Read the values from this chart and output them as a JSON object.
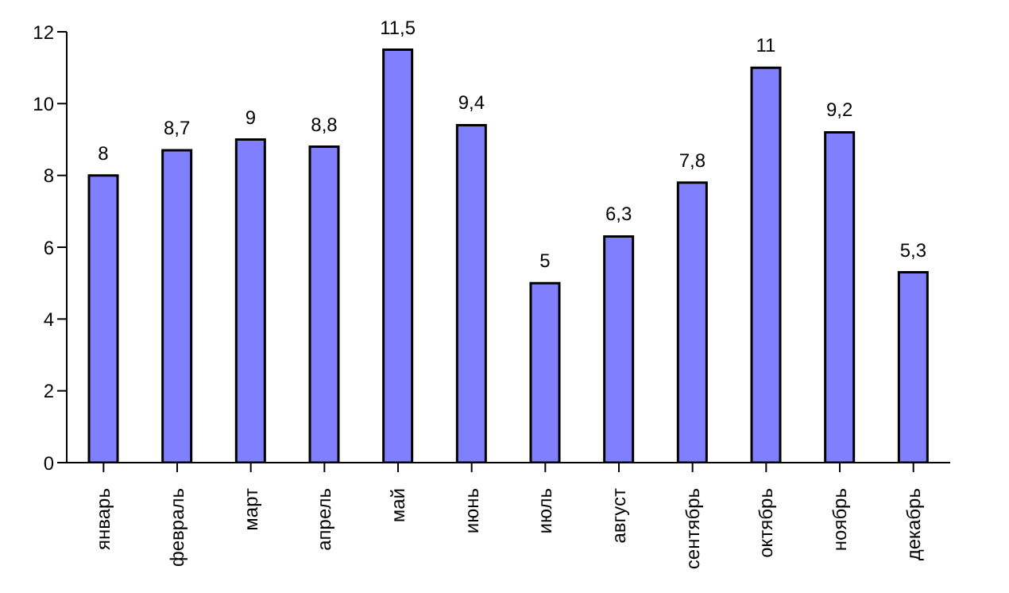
{
  "chart_data": {
    "type": "bar",
    "categories": [
      "январь",
      "февраль",
      "март",
      "апрель",
      "май",
      "июнь",
      "июль",
      "август",
      "сентябрь",
      "октябрь",
      "ноябрь",
      "декабрь"
    ],
    "values": [
      8,
      8.7,
      9,
      8.8,
      11.5,
      9.4,
      5,
      6.3,
      7.8,
      11,
      9.2,
      5.3
    ],
    "value_labels": [
      "8",
      "8,7",
      "9",
      "8,8",
      "11,5",
      "9,4",
      "5",
      "6,3",
      "7,8",
      "11",
      "9,2",
      "5,3"
    ],
    "color": "#8080ff",
    "ylim": [
      0,
      12
    ],
    "yticks": [
      0,
      2,
      4,
      6,
      8,
      10,
      12
    ],
    "grid": false,
    "legend": false
  }
}
